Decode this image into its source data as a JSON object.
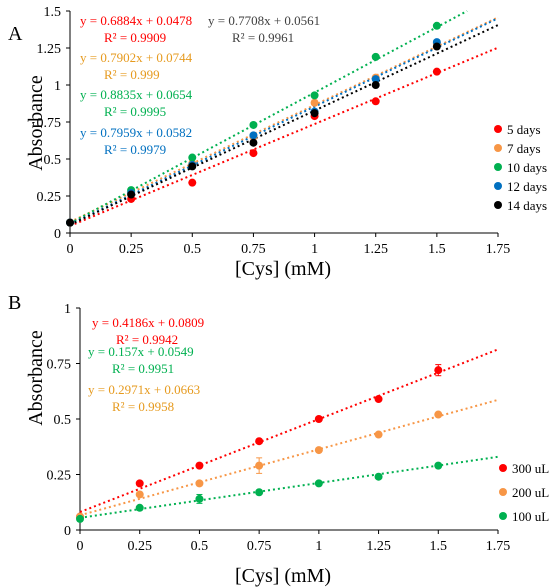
{
  "chart_data": [
    {
      "panel_label": "A",
      "type": "scatter",
      "xlabel": "[Cys] (mM)",
      "ylabel": "Absorbance",
      "xlim": [
        0,
        1.75
      ],
      "ylim": [
        0,
        1.5
      ],
      "xticks": [
        "0",
        "0.25",
        "0.5",
        "0.75",
        "1",
        "1.25",
        "1.5",
        "1.75"
      ],
      "yticks": [
        "0",
        "0.25",
        "0.5",
        "0.75",
        "1",
        "1.25",
        "1.5"
      ],
      "grid": false,
      "legend_position": "right",
      "series": [
        {
          "name": "5 days",
          "color": "#ff0000",
          "x": [
            0,
            0.25,
            0.5,
            0.75,
            1,
            1.25,
            1.5
          ],
          "y": [
            0.07,
            0.23,
            0.34,
            0.54,
            0.79,
            0.89,
            1.09
          ],
          "fit": {
            "slope": 0.6884,
            "intercept": 0.0478,
            "equation": "y = 0.6884x + 0.0478",
            "r2": "R² = 0.9909"
          }
        },
        {
          "name": "7 days",
          "color": "#f79646",
          "x": [
            0,
            0.25,
            0.5,
            0.75,
            1,
            1.25,
            1.5
          ],
          "y": [
            0.07,
            0.27,
            0.47,
            0.65,
            0.88,
            1.05,
            1.28
          ],
          "fit": {
            "slope": 0.7902,
            "intercept": 0.0744,
            "equation": "y = 0.7902x + 0.0744",
            "r2": "R² = 0.999"
          }
        },
        {
          "name": "10 days",
          "color": "#00b050",
          "x": [
            0,
            0.25,
            0.5,
            0.75,
            1,
            1.25,
            1.5
          ],
          "y": [
            0.07,
            0.29,
            0.51,
            0.73,
            0.93,
            1.19,
            1.4
          ],
          "fit": {
            "slope": 0.8835,
            "intercept": 0.0654,
            "equation": "y = 0.8835x + 0.0654",
            "r2": "R² = 0.9995"
          }
        },
        {
          "name": "12 days",
          "color": "#0070c0",
          "x": [
            0,
            0.25,
            0.5,
            0.75,
            1,
            1.25,
            1.5
          ],
          "y": [
            0.07,
            0.27,
            0.46,
            0.66,
            0.82,
            1.04,
            1.29
          ],
          "fit": {
            "slope": 0.7959,
            "intercept": 0.0582,
            "equation": "y = 0.7959x + 0.0582",
            "r2": "R² = 0.9979"
          }
        },
        {
          "name": "14 days",
          "color": "#000000",
          "x": [
            0,
            0.25,
            0.5,
            0.75,
            1,
            1.25,
            1.5
          ],
          "y": [
            0.07,
            0.26,
            0.45,
            0.61,
            0.81,
            1.0,
            1.26
          ],
          "fit": {
            "slope": 0.7708,
            "intercept": 0.0561,
            "equation": "y = 0.7708x + 0.0561",
            "r2": "R² = 0.9961"
          }
        }
      ]
    },
    {
      "panel_label": "B",
      "type": "scatter",
      "xlabel": "[Cys] (mM)",
      "ylabel": "Absorbance",
      "xlim": [
        0,
        1.75
      ],
      "ylim": [
        0,
        1
      ],
      "xticks": [
        "0",
        "0.25",
        "0.5",
        "0.75",
        "1",
        "1.25",
        "1.5",
        "1.75"
      ],
      "yticks": [
        "0",
        "0.25",
        "0.5",
        "0.75",
        "1"
      ],
      "grid": false,
      "legend_position": "right",
      "series": [
        {
          "name": "300 uL",
          "color": "#ff0000",
          "x": [
            0,
            0.25,
            0.5,
            0.75,
            1,
            1.25,
            1.5
          ],
          "y": [
            0.06,
            0.21,
            0.29,
            0.4,
            0.5,
            0.59,
            0.72
          ],
          "error": [
            0,
            0,
            0,
            0,
            0,
            0,
            0.025
          ],
          "fit": {
            "slope": 0.4186,
            "intercept": 0.0809,
            "equation": "y = 0.4186x + 0.0809",
            "r2": "R² = 0.9942"
          }
        },
        {
          "name": "200 uL",
          "color": "#f79646",
          "x": [
            0,
            0.25,
            0.5,
            0.75,
            1,
            1.25,
            1.5
          ],
          "y": [
            0.06,
            0.16,
            0.21,
            0.29,
            0.36,
            0.43,
            0.52
          ],
          "error": [
            0,
            0,
            0,
            0.035,
            0,
            0,
            0
          ],
          "fit": {
            "slope": 0.2971,
            "intercept": 0.0663,
            "equation": "y = 0.2971x + 0.0663",
            "r2": "R² = 0.9958"
          }
        },
        {
          "name": "100 uL",
          "color": "#00b050",
          "x": [
            0,
            0.25,
            0.5,
            0.75,
            1,
            1.25,
            1.5
          ],
          "y": [
            0.05,
            0.1,
            0.14,
            0.17,
            0.21,
            0.24,
            0.29
          ],
          "error": [
            0,
            0,
            0.02,
            0,
            0,
            0,
            0
          ],
          "fit": {
            "slope": 0.157,
            "intercept": 0.0549,
            "equation": "y = 0.157x + 0.0549",
            "r2": "R² = 0.9951"
          }
        }
      ]
    }
  ]
}
